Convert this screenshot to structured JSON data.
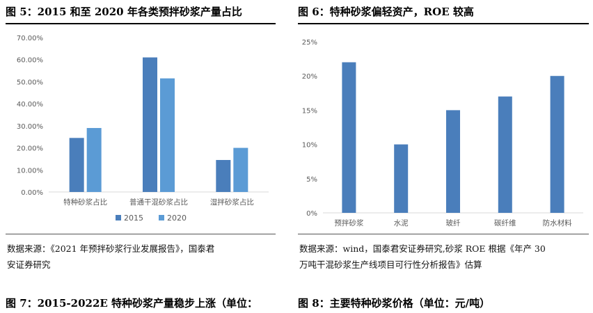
{
  "fig5": {
    "title": "图 5：2015 和至 2020 年各类预拌砂浆产量占比",
    "source_line1": "数据来源：《2021 年预拌砂浆行业发展报告》，国泰君",
    "source_line2": "安证券研究"
  },
  "fig6": {
    "title": "图 6：特种砂浆偏轻资产，ROE 较高",
    "source_line1": "数据来源：wind，国泰君安证券研究,砂浆 ROE 根据《年产 30",
    "source_line2": "万吨干混砂浆生产线项目可行性分析报告》估算"
  },
  "fig7": {
    "title": "图 7：2015-2022E 特种砂浆产量稳步上涨（单位："
  },
  "fig8": {
    "title": "图 8：主要特种砂浆价格（单位：元/吨）"
  },
  "colors": {
    "series_2015": "#4a7ebb",
    "series_2020": "#5b9bd5",
    "bar": "#4a7ebb",
    "axis_text": "#595959",
    "grid": "#d9d9d9"
  },
  "chart_data": [
    {
      "type": "bar",
      "categories": [
        "特种砂浆占比",
        "普通干混砂浆占比",
        "湿拌砂浆占比"
      ],
      "series": [
        {
          "name": "2015",
          "values": [
            24.5,
            61,
            14.5
          ]
        },
        {
          "name": "2020",
          "values": [
            29,
            51.5,
            20
          ]
        }
      ],
      "yticks": [
        "0.00%",
        "10.00%",
        "20.00%",
        "30.00%",
        "40.00%",
        "50.00%",
        "60.00%",
        "70.00%"
      ],
      "ylim": [
        0,
        70
      ],
      "grid": false,
      "legend": "bottom"
    },
    {
      "type": "bar",
      "categories": [
        "预拌砂浆",
        "水泥",
        "玻纤",
        "碳纤维",
        "防水材料"
      ],
      "values": [
        22,
        10,
        15,
        17,
        20
      ],
      "yticks": [
        "0%",
        "5%",
        "10%",
        "15%",
        "20%",
        "25%"
      ],
      "ylim": [
        0,
        25
      ],
      "grid": false,
      "legend": "none"
    }
  ]
}
